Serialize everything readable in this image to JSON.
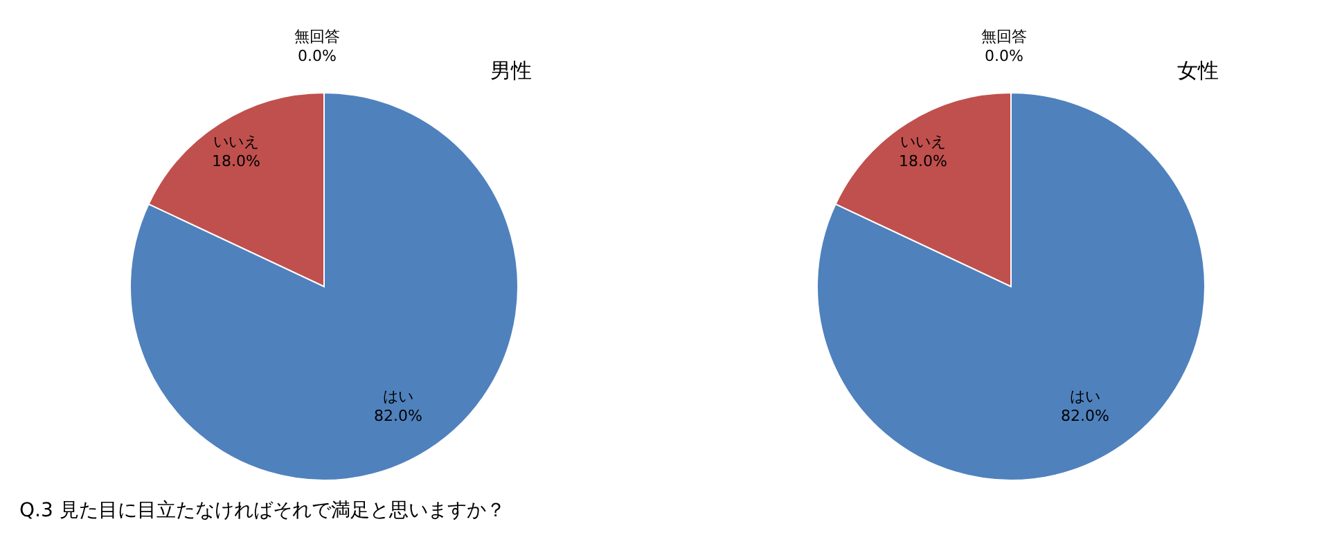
{
  "chart_data": [
    {
      "type": "pie",
      "title": "男性",
      "categories": [
        "はい",
        "いいえ",
        "無回答"
      ],
      "values": [
        82.0,
        18.0,
        0.0
      ],
      "value_labels": [
        "82.0%",
        "18.0%",
        "0.0%"
      ],
      "colors": [
        "#4f81bd",
        "#c0504d",
        "#9bbb59"
      ],
      "legend": false,
      "annotations": [
        "Q.3 見た目に目立たなければそれで満足と思いますか？"
      ]
    },
    {
      "type": "pie",
      "title": "女性",
      "categories": [
        "はい",
        "いいえ",
        "無回答"
      ],
      "values": [
        82.0,
        18.0,
        0.0
      ],
      "value_labels": [
        "82.0%",
        "18.0%",
        "0.0%"
      ],
      "colors": [
        "#4f81bd",
        "#c0504d",
        "#9bbb59"
      ],
      "legend": false
    }
  ]
}
